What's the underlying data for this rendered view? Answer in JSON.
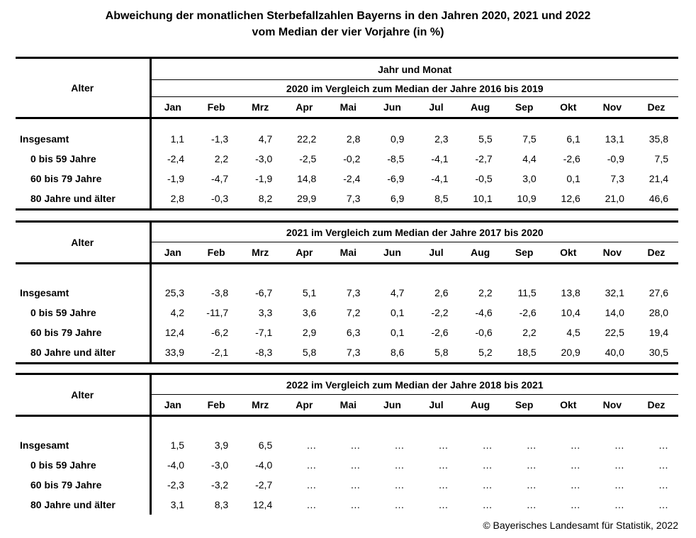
{
  "title": {
    "line1": "Abweichung der monatlichen Sterbefallzahlen Bayerns in den Jahren 2020, 2021 und 2022",
    "line2": "vom Median der vier Vorjahre (in %)"
  },
  "common": {
    "alter_label": "Alter",
    "months": [
      "Jan",
      "Feb",
      "Mrz",
      "Apr",
      "Mai",
      "Jun",
      "Jul",
      "Aug",
      "Sep",
      "Okt",
      "Nov",
      "Dez"
    ]
  },
  "tables": [
    {
      "jahr_und_monat": "Jahr und Monat",
      "subtitle": "2020 im Vergleich zum Median der Jahre 2016 bis 2019",
      "has_bottom_border": true,
      "rows": [
        {
          "label": "Insgesamt",
          "indent": false,
          "values": [
            "1,1",
            "-1,3",
            "4,7",
            "22,2",
            "2,8",
            "0,9",
            "2,3",
            "5,5",
            "7,5",
            "6,1",
            "13,1",
            "35,8"
          ]
        },
        {
          "label": "0 bis 59 Jahre",
          "indent": true,
          "values": [
            "-2,4",
            "2,2",
            "-3,0",
            "-2,5",
            "-0,2",
            "-8,5",
            "-4,1",
            "-2,7",
            "4,4",
            "-2,6",
            "-0,9",
            "7,5"
          ]
        },
        {
          "label": "60 bis 79 Jahre",
          "indent": true,
          "values": [
            "-1,9",
            "-4,7",
            "-1,9",
            "14,8",
            "-2,4",
            "-6,9",
            "-4,1",
            "-0,5",
            "3,0",
            "0,1",
            "7,3",
            "21,4"
          ]
        },
        {
          "label": "80 Jahre und älter",
          "indent": true,
          "values": [
            "2,8",
            "-0,3",
            "8,2",
            "29,9",
            "7,3",
            "6,9",
            "8,5",
            "10,1",
            "10,9",
            "12,6",
            "21,0",
            "46,6"
          ]
        }
      ]
    },
    {
      "subtitle": "2021 im Vergleich zum Median der Jahre 2017 bis 2020",
      "has_bottom_border": true,
      "rows": [
        {
          "label": "Insgesamt",
          "indent": false,
          "values": [
            "25,3",
            "-3,8",
            "-6,7",
            "5,1",
            "7,3",
            "4,7",
            "2,6",
            "2,2",
            "11,5",
            "13,8",
            "32,1",
            "27,6"
          ]
        },
        {
          "label": "0 bis 59 Jahre",
          "indent": true,
          "values": [
            "4,2",
            "-11,7",
            "3,3",
            "3,6",
            "7,2",
            "0,1",
            "-2,2",
            "-4,6",
            "-2,6",
            "10,4",
            "14,0",
            "28,0"
          ]
        },
        {
          "label": "60 bis 79 Jahre",
          "indent": true,
          "values": [
            "12,4",
            "-6,2",
            "-7,1",
            "2,9",
            "6,3",
            "0,1",
            "-2,6",
            "-0,6",
            "2,2",
            "4,5",
            "22,5",
            "19,4"
          ]
        },
        {
          "label": "80 Jahre und älter",
          "indent": true,
          "values": [
            "33,9",
            "-2,1",
            "-8,3",
            "5,8",
            "7,3",
            "8,6",
            "5,8",
            "5,2",
            "18,5",
            "20,9",
            "40,0",
            "30,5"
          ]
        }
      ]
    },
    {
      "subtitle": "2022 im Vergleich zum Median der Jahre 2018 bis 2021",
      "has_bottom_border": false,
      "rows": [
        {
          "label": "Insgesamt",
          "indent": false,
          "values": [
            "1,5",
            "3,9",
            "6,5",
            "…",
            "…",
            "…",
            "…",
            "…",
            "…",
            "…",
            "…",
            "…"
          ]
        },
        {
          "label": "0 bis 59 Jahre",
          "indent": true,
          "values": [
            "-4,0",
            "-3,0",
            "-4,0",
            "…",
            "…",
            "…",
            "…",
            "…",
            "…",
            "…",
            "…",
            "…"
          ]
        },
        {
          "label": "60 bis 79 Jahre",
          "indent": true,
          "values": [
            "-2,3",
            "-3,2",
            "-2,7",
            "…",
            "…",
            "…",
            "…",
            "…",
            "…",
            "…",
            "…",
            "…"
          ]
        },
        {
          "label": "80 Jahre und älter",
          "indent": true,
          "values": [
            "3,1",
            "8,3",
            "12,4",
            "…",
            "…",
            "…",
            "…",
            "…",
            "…",
            "…",
            "…",
            "…"
          ]
        }
      ]
    }
  ],
  "footer": {
    "copyright": "© Bayerisches Landesamt für Statistik, 2022"
  },
  "chart_data": [
    {
      "type": "table",
      "title": "2020 im Vergleich zum Median der Jahre 2016 bis 2019",
      "columns": [
        "Jan",
        "Feb",
        "Mrz",
        "Apr",
        "Mai",
        "Jun",
        "Jul",
        "Aug",
        "Sep",
        "Okt",
        "Nov",
        "Dez"
      ],
      "unit": "%",
      "rows": [
        {
          "label": "Insgesamt",
          "values": [
            1.1,
            -1.3,
            4.7,
            22.2,
            2.8,
            0.9,
            2.3,
            5.5,
            7.5,
            6.1,
            13.1,
            35.8
          ]
        },
        {
          "label": "0 bis 59 Jahre",
          "values": [
            -2.4,
            2.2,
            -3.0,
            -2.5,
            -0.2,
            -8.5,
            -4.1,
            -2.7,
            4.4,
            -2.6,
            -0.9,
            7.5
          ]
        },
        {
          "label": "60 bis 79 Jahre",
          "values": [
            -1.9,
            -4.7,
            -1.9,
            14.8,
            -2.4,
            -6.9,
            -4.1,
            -0.5,
            3.0,
            0.1,
            7.3,
            21.4
          ]
        },
        {
          "label": "80 Jahre und älter",
          "values": [
            2.8,
            -0.3,
            8.2,
            29.9,
            7.3,
            6.9,
            8.5,
            10.1,
            10.9,
            12.6,
            21.0,
            46.6
          ]
        }
      ]
    },
    {
      "type": "table",
      "title": "2021 im Vergleich zum Median der Jahre 2017 bis 2020",
      "columns": [
        "Jan",
        "Feb",
        "Mrz",
        "Apr",
        "Mai",
        "Jun",
        "Jul",
        "Aug",
        "Sep",
        "Okt",
        "Nov",
        "Dez"
      ],
      "unit": "%",
      "rows": [
        {
          "label": "Insgesamt",
          "values": [
            25.3,
            -3.8,
            -6.7,
            5.1,
            7.3,
            4.7,
            2.6,
            2.2,
            11.5,
            13.8,
            32.1,
            27.6
          ]
        },
        {
          "label": "0 bis 59 Jahre",
          "values": [
            4.2,
            -11.7,
            3.3,
            3.6,
            7.2,
            0.1,
            -2.2,
            -4.6,
            -2.6,
            10.4,
            14.0,
            28.0
          ]
        },
        {
          "label": "60 bis 79 Jahre",
          "values": [
            12.4,
            -6.2,
            -7.1,
            2.9,
            6.3,
            0.1,
            -2.6,
            -0.6,
            2.2,
            4.5,
            22.5,
            19.4
          ]
        },
        {
          "label": "80 Jahre und älter",
          "values": [
            33.9,
            -2.1,
            -8.3,
            5.8,
            7.3,
            8.6,
            5.8,
            5.2,
            18.5,
            20.9,
            40.0,
            30.5
          ]
        }
      ]
    },
    {
      "type": "table",
      "title": "2022 im Vergleich zum Median der Jahre 2018 bis 2021",
      "columns": [
        "Jan",
        "Feb",
        "Mrz",
        "Apr",
        "Mai",
        "Jun",
        "Jul",
        "Aug",
        "Sep",
        "Okt",
        "Nov",
        "Dez"
      ],
      "unit": "%",
      "rows": [
        {
          "label": "Insgesamt",
          "values": [
            1.5,
            3.9,
            6.5,
            null,
            null,
            null,
            null,
            null,
            null,
            null,
            null,
            null
          ]
        },
        {
          "label": "0 bis 59 Jahre",
          "values": [
            -4.0,
            -3.0,
            -4.0,
            null,
            null,
            null,
            null,
            null,
            null,
            null,
            null,
            null
          ]
        },
        {
          "label": "60 bis 79 Jahre",
          "values": [
            -2.3,
            -3.2,
            -2.7,
            null,
            null,
            null,
            null,
            null,
            null,
            null,
            null,
            null
          ]
        },
        {
          "label": "80 Jahre und älter",
          "values": [
            3.1,
            8.3,
            12.4,
            null,
            null,
            null,
            null,
            null,
            null,
            null,
            null,
            null
          ]
        }
      ]
    }
  ]
}
